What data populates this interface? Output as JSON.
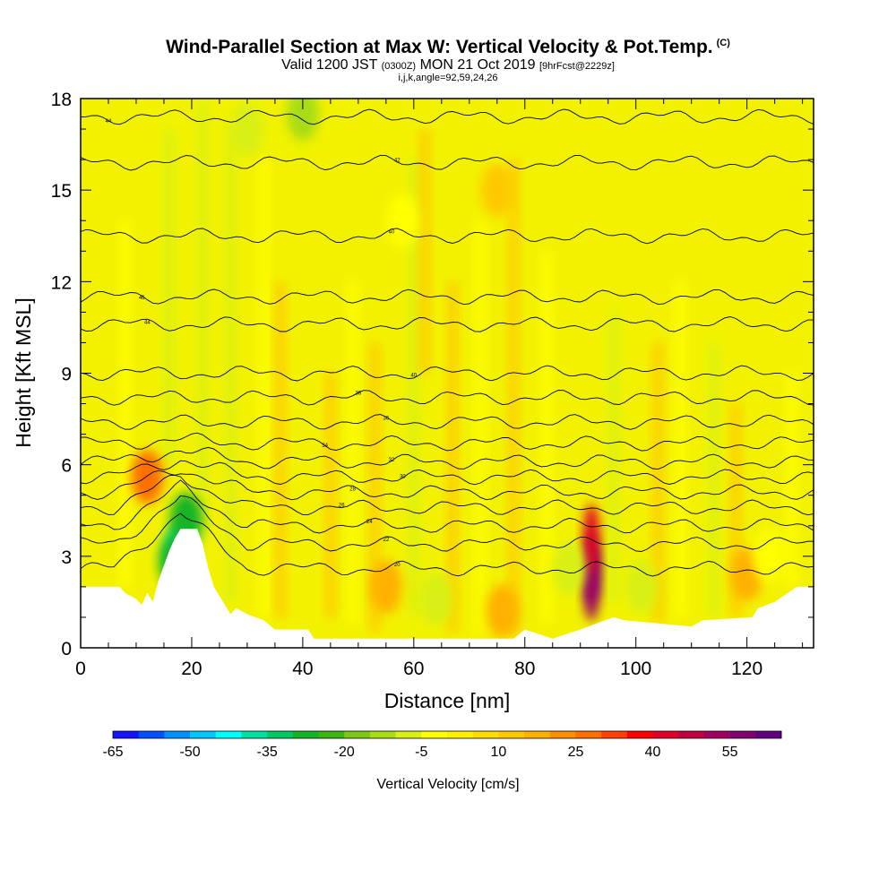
{
  "title": "Wind-Parallel Section at Max W: Vertical Velocity & Pot.Temp.",
  "title_mark": "(C)",
  "subtitle_valid": "Valid 1200 JST",
  "subtitle_z": "(0300Z)",
  "subtitle_date": "MON 21 Oct 2019",
  "subtitle_fcst": "[9hrFcst@2229z]",
  "subtitle_ijk": "i,j,k,angle=92,59,24,26",
  "colors": {
    "background_field": "#f2f200",
    "positive_warm": "#fcc400",
    "negative_green": "#90d818",
    "terrain": "#ffffff",
    "contour": "#000000"
  },
  "chart_data": {
    "type": "heatmap",
    "xlabel": "Distance [nm]",
    "ylabel": "Height [Kft MSL]",
    "xlim": [
      0,
      132
    ],
    "ylim": [
      0,
      18
    ],
    "x_ticks": [
      "0",
      "20",
      "40",
      "60",
      "80",
      "100",
      "120"
    ],
    "y_ticks": [
      "0",
      "3",
      "6",
      "9",
      "12",
      "15",
      "18"
    ],
    "colorbar": {
      "title": "Vertical Velocity [cm/s]",
      "labels": [
        "-65",
        "-50",
        "-35",
        "-20",
        "-5",
        "10",
        "25",
        "40",
        "55"
      ],
      "colors": [
        "#1414ff",
        "#0050ff",
        "#0090ff",
        "#00c8ff",
        "#00ffff",
        "#00e0a0",
        "#00c864",
        "#14b428",
        "#3cb414",
        "#7cc814",
        "#a8dc14",
        "#d8f014",
        "#ffff00",
        "#fff000",
        "#ffdc00",
        "#ffc800",
        "#ffb000",
        "#ff9000",
        "#ff7000",
        "#ff4000",
        "#ff0000",
        "#e00028",
        "#c00040",
        "#a00060",
        "#800070",
        "#600080"
      ]
    },
    "terrain": [
      {
        "x": 0,
        "h": 2.0
      },
      {
        "x": 7,
        "h": 2.0
      },
      {
        "x": 8,
        "h": 1.8
      },
      {
        "x": 10,
        "h": 1.6
      },
      {
        "x": 11,
        "h": 1.4
      },
      {
        "x": 12,
        "h": 1.8
      },
      {
        "x": 13,
        "h": 1.5
      },
      {
        "x": 14,
        "h": 2.2
      },
      {
        "x": 15,
        "h": 2.7
      },
      {
        "x": 16,
        "h": 3.2
      },
      {
        "x": 17,
        "h": 3.6
      },
      {
        "x": 18,
        "h": 3.9
      },
      {
        "x": 21,
        "h": 3.9
      },
      {
        "x": 22,
        "h": 3.4
      },
      {
        "x": 23,
        "h": 2.6
      },
      {
        "x": 24,
        "h": 2.0
      },
      {
        "x": 25,
        "h": 1.7
      },
      {
        "x": 26,
        "h": 1.4
      },
      {
        "x": 27,
        "h": 1.1
      },
      {
        "x": 28,
        "h": 1.3
      },
      {
        "x": 30,
        "h": 1.1
      },
      {
        "x": 33,
        "h": 0.9
      },
      {
        "x": 35,
        "h": 0.6
      },
      {
        "x": 41,
        "h": 0.6
      },
      {
        "x": 42,
        "h": 0.3
      },
      {
        "x": 78,
        "h": 0.3
      },
      {
        "x": 80,
        "h": 0.6
      },
      {
        "x": 85,
        "h": 0.3
      },
      {
        "x": 90,
        "h": 0.6
      },
      {
        "x": 96,
        "h": 1.0
      },
      {
        "x": 98,
        "h": 0.9
      },
      {
        "x": 110,
        "h": 0.7
      },
      {
        "x": 112,
        "h": 0.9
      },
      {
        "x": 121,
        "h": 1.0
      },
      {
        "x": 122,
        "h": 1.3
      },
      {
        "x": 125,
        "h": 1.5
      },
      {
        "x": 129,
        "h": 2.0
      },
      {
        "x": 132,
        "h": 2.0
      }
    ],
    "velocity_cells": [
      {
        "x": 92,
        "h": 2.6,
        "value": 58
      },
      {
        "x": 92,
        "h": 2.0,
        "value": 48
      },
      {
        "x": 92,
        "h": 3.6,
        "value": 40
      },
      {
        "x": 12,
        "h": 5.6,
        "value": 24
      },
      {
        "x": 18,
        "h": 3.2,
        "value": -38
      },
      {
        "x": 19,
        "h": 4.2,
        "value": -30
      },
      {
        "x": 17,
        "h": 2.8,
        "value": -28
      },
      {
        "x": 30,
        "h": 17.0,
        "value": -12
      },
      {
        "x": 40,
        "h": 17.5,
        "value": -14
      },
      {
        "x": 55,
        "h": 2.0,
        "value": 14
      },
      {
        "x": 64,
        "h": 1.6,
        "value": -10
      },
      {
        "x": 76,
        "h": 1.2,
        "value": 16
      },
      {
        "x": 88,
        "h": 2.6,
        "value": -8
      },
      {
        "x": 101,
        "h": 2.0,
        "value": -9
      },
      {
        "x": 120,
        "h": 2.4,
        "value": 16
      },
      {
        "x": 124,
        "h": 3.0,
        "value": -6
      },
      {
        "x": 75,
        "h": 15.0,
        "value": 12
      },
      {
        "x": 58,
        "h": 14.0,
        "value": -6
      }
    ],
    "theta_contours": [
      {
        "base": 2.6,
        "label": "20",
        "label_x": 57
      },
      {
        "base": 3.4,
        "label": "22",
        "label_x": 55
      },
      {
        "base": 4.0,
        "label": "24",
        "label_x": 52
      },
      {
        "base": 4.6,
        "label": "26",
        "label_x": 47
      },
      {
        "base": 5.1,
        "label": "28",
        "label_x": 49
      },
      {
        "base": 5.6,
        "label": "30",
        "label_x": 58
      },
      {
        "base": 6.1,
        "label": "32",
        "label_x": 56
      },
      {
        "base": 6.7,
        "label": "34",
        "label_x": 44
      },
      {
        "base": 7.4,
        "label": "36",
        "label_x": 55
      },
      {
        "base": 8.2,
        "label": "38",
        "label_x": 50
      },
      {
        "base": 9.0,
        "label": "40",
        "label_x": 60
      },
      {
        "base": 10.6,
        "label": "44",
        "label_x": 12
      },
      {
        "base": 11.5,
        "label": "46",
        "label_x": 11
      },
      {
        "base": 13.5,
        "label": "40",
        "label_x": 56
      },
      {
        "base": 15.9,
        "label": "42",
        "label_x": 57
      },
      {
        "base": 17.4,
        "label": "44",
        "label_x": 5
      }
    ]
  }
}
